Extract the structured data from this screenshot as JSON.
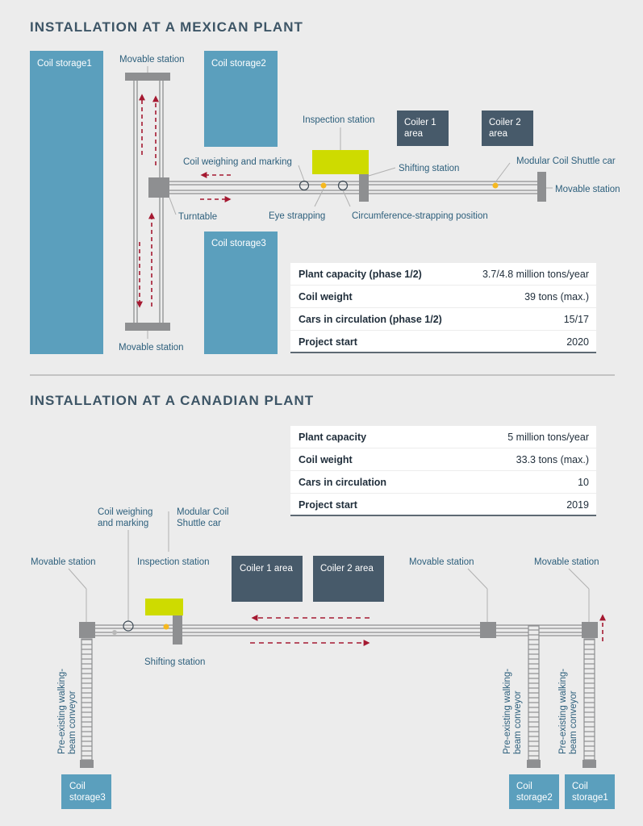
{
  "mexico": {
    "title": "INSTALLATION AT A MEXICAN PLANT",
    "coil_storage1": "Coil storage1",
    "coil_storage2": "Coil storage2",
    "coil_storage3": "Coil storage3",
    "movable_station_top": "Movable station",
    "movable_station_bottom": "Movable station",
    "movable_station_right": "Movable station",
    "inspection_station": "Inspection station",
    "coiler1_l1": "Coiler 1",
    "coiler1_l2": "area",
    "coiler2_l1": "Coiler 2",
    "coiler2_l2": "area",
    "coil_weighing": "Coil weighing and marking",
    "shifting_station": "Shifting station",
    "shuttle_car": "Modular Coil Shuttle car",
    "turntable": "Turntable",
    "eye_strapping": "Eye strapping",
    "circumference": "Circumference-strapping position",
    "table": [
      {
        "key": "Plant capacity (phase 1/2)",
        "value": "3.7/4.8 million tons/year"
      },
      {
        "key": "Coil weight",
        "value": "39 tons (max.)"
      },
      {
        "key": "Cars in circulation (phase 1/2)",
        "value": "15/17"
      },
      {
        "key": "Project start",
        "value": "2020"
      }
    ]
  },
  "canada": {
    "title": "INSTALLATION AT A CANADIAN PLANT",
    "table": [
      {
        "key": "Plant capacity",
        "value": "5 million tons/year"
      },
      {
        "key": "Coil weight",
        "value": "33.3 tons (max.)"
      },
      {
        "key": "Cars in circulation",
        "value": "10"
      },
      {
        "key": "Project start",
        "value": "2019"
      }
    ],
    "coil_weighing_l1": "Coil weighing",
    "coil_weighing_l2": "and marking",
    "shuttle_l1": "Modular Coil",
    "shuttle_l2": "Shuttle car",
    "movable_station_left": "Movable station",
    "inspection_station": "Inspection station",
    "coiler1": "Coiler 1 area",
    "coiler2": "Coiler 2 area",
    "movable_station_mid": "Movable station",
    "movable_station_right": "Movable station",
    "shifting_station": "Shifting station",
    "conveyor_l1": "Pre-existing walking-",
    "conveyor_l2": "beam conveyor",
    "storage3_l1": "Coil",
    "storage3_l2": "storage3",
    "storage2_l1": "Coil",
    "storage2_l2": "storage2",
    "storage1_l1": "Coil",
    "storage1_l2": "storage1"
  },
  "colors": {
    "storage_blue": "#5b9fbd",
    "coiler_dark": "#475a6a",
    "inspection_lime": "#cedb00",
    "arrow_red": "#a51931",
    "station_gray": "#8e8f91",
    "dot_orange": "#f5b820"
  }
}
